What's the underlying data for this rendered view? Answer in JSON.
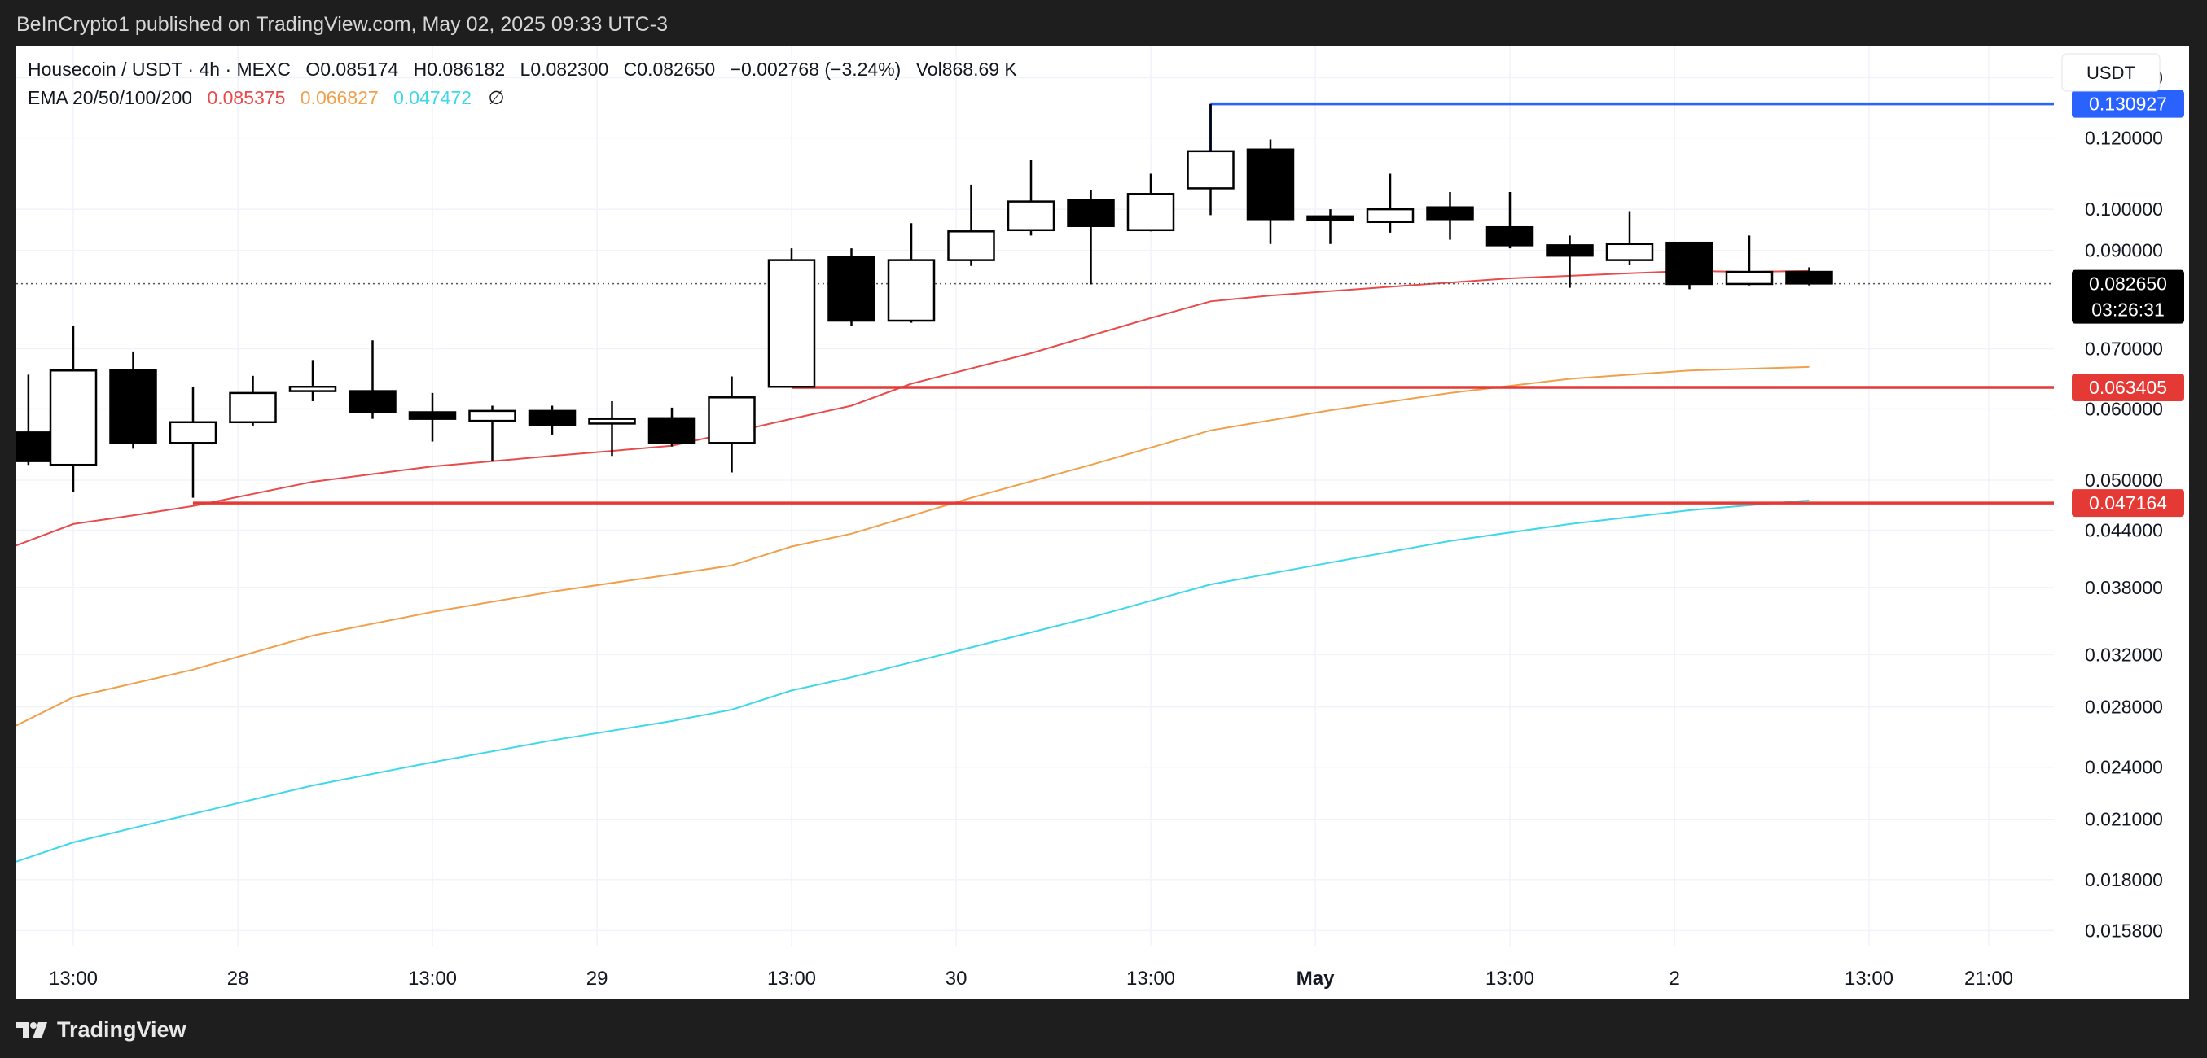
{
  "header": {
    "published_text": "BeInCrypto1 published on TradingView.com, May 02, 2025 09:33 UTC-3"
  },
  "legend": {
    "symbol_line": "Housecoin / USDT · 4h · MEXC",
    "ohlc": [
      {
        "label": "O",
        "value": "0.085174"
      },
      {
        "label": "H",
        "value": "0.086182"
      },
      {
        "label": "L",
        "value": "0.082300"
      },
      {
        "label": "C",
        "value": "0.082650"
      }
    ],
    "change": "−0.002768 (−3.24%)",
    "volume": "Vol868.69 K",
    "ema_label": "EMA 20/50/100/200",
    "ema_values": [
      {
        "value": "0.085375",
        "color": "#e84b4b"
      },
      {
        "value": "0.066827",
        "color": "#f0a04b"
      },
      {
        "value": "0.047472",
        "color": "#3fd8e8"
      }
    ],
    "ema_extra": "∅"
  },
  "footer": {
    "brand": "TradingView",
    "logo_icon": "tradingview-logo-icon"
  },
  "chart_data": {
    "type": "candlestick",
    "title": "Housecoin / USDT · 4h · MEXC",
    "currency_label": "USDT",
    "y_scale": "log",
    "ylim": [
      0.0152,
      0.152
    ],
    "y_ticks": [
      {
        "value": 0.14,
        "label": "0.140000"
      },
      {
        "value": 0.12,
        "label": "0.120000"
      },
      {
        "value": 0.1,
        "label": "0.100000"
      },
      {
        "value": 0.09,
        "label": "0.090000"
      },
      {
        "value": 0.07,
        "label": "0.070000"
      },
      {
        "value": 0.06,
        "label": "0.060000"
      },
      {
        "value": 0.05,
        "label": "0.050000"
      },
      {
        "value": 0.044,
        "label": "0.044000"
      },
      {
        "value": 0.038,
        "label": "0.038000"
      },
      {
        "value": 0.032,
        "label": "0.032000"
      },
      {
        "value": 0.028,
        "label": "0.028000"
      },
      {
        "value": 0.024,
        "label": "0.024000"
      },
      {
        "value": 0.021,
        "label": "0.021000"
      },
      {
        "value": 0.018,
        "label": "0.018000"
      },
      {
        "value": 0.0158,
        "label": "0.015800"
      }
    ],
    "x_ticks": [
      {
        "t": 0,
        "label": "13:00",
        "bold": false
      },
      {
        "t": 2.75,
        "label": "28",
        "bold": false
      },
      {
        "t": 6,
        "label": "13:00",
        "bold": false
      },
      {
        "t": 8.75,
        "label": "29",
        "bold": false
      },
      {
        "t": 12,
        "label": "13:00",
        "bold": false
      },
      {
        "t": 14.75,
        "label": "30",
        "bold": false
      },
      {
        "t": 18,
        "label": "13:00",
        "bold": false
      },
      {
        "t": 20.75,
        "label": "May",
        "bold": true
      },
      {
        "t": 24,
        "label": "13:00",
        "bold": false
      },
      {
        "t": 26.75,
        "label": "2",
        "bold": false
      },
      {
        "t": 30,
        "label": "13:00",
        "bold": false
      },
      {
        "t": 32,
        "label": "21:00",
        "bold": false
      }
    ],
    "candles": [
      {
        "t": -0.75,
        "o": 0.0565,
        "h": 0.0655,
        "l": 0.052,
        "c": 0.0525
      },
      {
        "t": 0,
        "o": 0.052,
        "h": 0.0742,
        "l": 0.0485,
        "c": 0.0662
      },
      {
        "t": 1,
        "o": 0.0662,
        "h": 0.0695,
        "l": 0.0542,
        "c": 0.055
      },
      {
        "t": 2,
        "o": 0.055,
        "h": 0.0635,
        "l": 0.0478,
        "c": 0.058
      },
      {
        "t": 3,
        "o": 0.058,
        "h": 0.0653,
        "l": 0.0575,
        "c": 0.0625
      },
      {
        "t": 4,
        "o": 0.0628,
        "h": 0.068,
        "l": 0.0612,
        "c": 0.0635
      },
      {
        "t": 5,
        "o": 0.0628,
        "h": 0.0715,
        "l": 0.0585,
        "c": 0.0595
      },
      {
        "t": 6,
        "o": 0.0595,
        "h": 0.0625,
        "l": 0.0552,
        "c": 0.0585
      },
      {
        "t": 7,
        "o": 0.0582,
        "h": 0.0605,
        "l": 0.0525,
        "c": 0.0597
      },
      {
        "t": 8,
        "o": 0.0597,
        "h": 0.0605,
        "l": 0.0562,
        "c": 0.0576
      },
      {
        "t": 9,
        "o": 0.0578,
        "h": 0.0612,
        "l": 0.0532,
        "c": 0.0585
      },
      {
        "t": 10,
        "o": 0.0586,
        "h": 0.0602,
        "l": 0.0545,
        "c": 0.055
      },
      {
        "t": 11,
        "o": 0.055,
        "h": 0.0652,
        "l": 0.051,
        "c": 0.0618
      },
      {
        "t": 12,
        "o": 0.0635,
        "h": 0.0905,
        "l": 0.0635,
        "c": 0.0878
      },
      {
        "t": 13,
        "o": 0.0885,
        "h": 0.0905,
        "l": 0.0742,
        "c": 0.0752
      },
      {
        "t": 14,
        "o": 0.0752,
        "h": 0.0965,
        "l": 0.0748,
        "c": 0.0878
      },
      {
        "t": 15,
        "o": 0.0878,
        "h": 0.1065,
        "l": 0.0865,
        "c": 0.0945
      },
      {
        "t": 16,
        "o": 0.0948,
        "h": 0.1135,
        "l": 0.0935,
        "c": 0.102
      },
      {
        "t": 17,
        "o": 0.1025,
        "h": 0.105,
        "l": 0.0825,
        "c": 0.0958
      },
      {
        "t": 18,
        "o": 0.0948,
        "h": 0.1095,
        "l": 0.0945,
        "c": 0.104
      },
      {
        "t": 19,
        "o": 0.1055,
        "h": 0.1309,
        "l": 0.0985,
        "c": 0.116
      },
      {
        "t": 20,
        "o": 0.1165,
        "h": 0.1195,
        "l": 0.0915,
        "c": 0.0975
      },
      {
        "t": 21,
        "o": 0.0982,
        "h": 0.1,
        "l": 0.0915,
        "c": 0.0972
      },
      {
        "t": 22,
        "o": 0.0968,
        "h": 0.1095,
        "l": 0.0942,
        "c": 0.1
      },
      {
        "t": 23,
        "o": 0.1005,
        "h": 0.1045,
        "l": 0.0925,
        "c": 0.0975
      },
      {
        "t": 24,
        "o": 0.0955,
        "h": 0.1045,
        "l": 0.0905,
        "c": 0.0912
      },
      {
        "t": 25,
        "o": 0.0912,
        "h": 0.0935,
        "l": 0.0818,
        "c": 0.0888
      },
      {
        "t": 26,
        "o": 0.0878,
        "h": 0.0995,
        "l": 0.0868,
        "c": 0.0915
      },
      {
        "t": 27,
        "o": 0.0918,
        "h": 0.092,
        "l": 0.0815,
        "c": 0.0826
      },
      {
        "t": 28,
        "o": 0.0826,
        "h": 0.0935,
        "l": 0.0823,
        "c": 0.0852
      },
      {
        "t": 29,
        "o": 0.0852,
        "h": 0.0862,
        "l": 0.0823,
        "c": 0.0827
      }
    ],
    "series": [
      {
        "name": "EMA 20",
        "color": "#e84b4b",
        "points": [
          [
            -1,
            0.0422
          ],
          [
            0,
            0.0447
          ],
          [
            1,
            0.0457
          ],
          [
            2,
            0.0468
          ],
          [
            4,
            0.0498
          ],
          [
            6,
            0.0518
          ],
          [
            8,
            0.0532
          ],
          [
            10,
            0.0546
          ],
          [
            12,
            0.0585
          ],
          [
            13,
            0.0605
          ],
          [
            14,
            0.064
          ],
          [
            16,
            0.0692
          ],
          [
            18,
            0.0757
          ],
          [
            19,
            0.079
          ],
          [
            20,
            0.0802
          ],
          [
            22,
            0.082
          ],
          [
            24,
            0.0838
          ],
          [
            26,
            0.0849
          ],
          [
            27,
            0.0854
          ],
          [
            28,
            0.0852
          ],
          [
            29,
            0.0854
          ]
        ]
      },
      {
        "name": "EMA 50",
        "color": "#f0a04b",
        "points": [
          [
            -1,
            0.0266
          ],
          [
            0,
            0.0287
          ],
          [
            2,
            0.0308
          ],
          [
            4,
            0.0336
          ],
          [
            6,
            0.0357
          ],
          [
            8,
            0.0376
          ],
          [
            10,
            0.0393
          ],
          [
            11,
            0.0402
          ],
          [
            12,
            0.0422
          ],
          [
            13,
            0.0436
          ],
          [
            15,
            0.0478
          ],
          [
            17,
            0.052
          ],
          [
            19,
            0.0568
          ],
          [
            21,
            0.0598
          ],
          [
            23,
            0.0625
          ],
          [
            25,
            0.0648
          ],
          [
            27,
            0.0662
          ],
          [
            29,
            0.0668
          ]
        ]
      },
      {
        "name": "EMA 100",
        "color": "#3fd8e8",
        "points": [
          [
            -1,
            0.0188
          ],
          [
            0,
            0.0198
          ],
          [
            2,
            0.0213
          ],
          [
            4,
            0.0229
          ],
          [
            6,
            0.0243
          ],
          [
            8,
            0.0257
          ],
          [
            10,
            0.027
          ],
          [
            11,
            0.0278
          ],
          [
            12,
            0.0292
          ],
          [
            13,
            0.0302
          ],
          [
            15,
            0.0326
          ],
          [
            17,
            0.0352
          ],
          [
            19,
            0.0383
          ],
          [
            21,
            0.0405
          ],
          [
            23,
            0.0428
          ],
          [
            25,
            0.0447
          ],
          [
            27,
            0.0463
          ],
          [
            29,
            0.0475
          ]
        ]
      }
    ],
    "levels": [
      {
        "value": 0.130927,
        "label": "0.130927",
        "color": "#2962ff",
        "t_start": 19
      },
      {
        "value": 0.063405,
        "label": "0.063405",
        "color": "#e53935",
        "t_start": 12
      },
      {
        "value": 0.047164,
        "label": "0.047164",
        "color": "#e53935",
        "t_start": 2
      }
    ],
    "last_price": {
      "value": 0.08265,
      "label": "0.082650",
      "countdown": "03:26:31"
    }
  }
}
